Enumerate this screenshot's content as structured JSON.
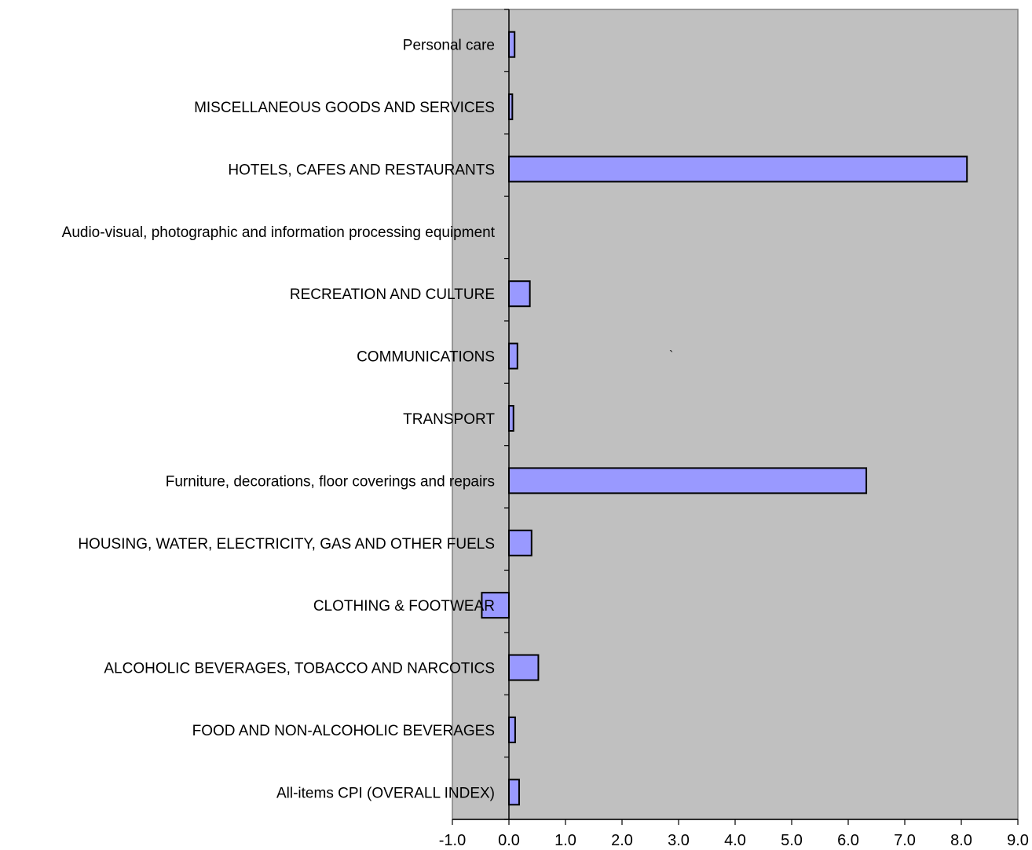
{
  "chart_data": {
    "type": "bar",
    "orientation": "horizontal",
    "categories": [
      "All-items CPI (OVERALL INDEX)",
      "FOOD AND NON-ALCOHOLIC BEVERAGES",
      "ALCOHOLIC BEVERAGES, TOBACCO AND NARCOTICS",
      "CLOTHING & FOOTWEAR",
      "HOUSING, WATER, ELECTRICITY, GAS AND OTHER FUELS",
      "Furniture, decorations, floor coverings and repairs",
      "TRANSPORT",
      "COMMUNICATIONS",
      "RECREATION AND CULTURE",
      "Audio-visual, photographic and information processing equipment",
      "HOTELS, CAFES AND RESTAURANTS",
      "MISCELLANEOUS GOODS AND SERVICES",
      "Personal care"
    ],
    "values": [
      0.18,
      0.11,
      0.52,
      -0.48,
      0.4,
      6.32,
      0.08,
      0.15,
      0.37,
      0.0,
      8.1,
      0.06,
      0.1
    ],
    "title": "",
    "xlabel": "",
    "ylabel": "",
    "xlim": [
      -1.0,
      9.0
    ],
    "xticks": [
      "-1.0",
      "0.0",
      "1.0",
      "2.0",
      "3.0",
      "4.0",
      "5.0",
      "6.0",
      "7.0",
      "8.0",
      "9.0"
    ],
    "grid": false,
    "legend": "none",
    "annotation": "`",
    "colors": {
      "plot_background": "#c0c0c0",
      "bar_fill": "#9999ff",
      "bar_stroke": "#000000",
      "axis": "#000000"
    }
  }
}
